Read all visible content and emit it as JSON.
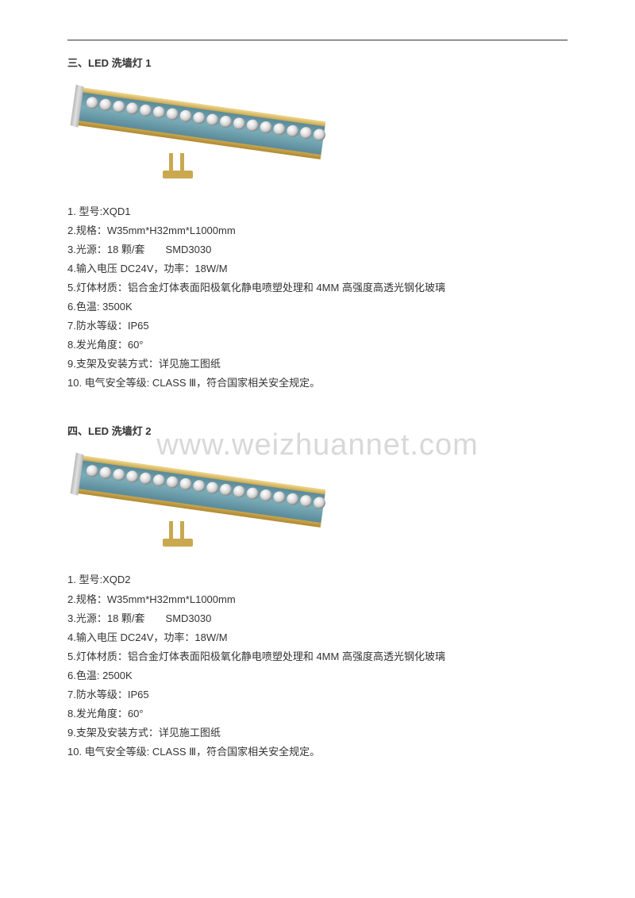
{
  "watermark": "www.weizhuannet.com",
  "section1": {
    "title": "三、LED 洗墙灯 1",
    "specs": [
      "1. 型号:XQD1",
      "2.规格：W35mm*H32mm*L1000mm",
      "3.光源：18 颗/套　　SMD3030",
      "4.输入电压 DC24V，功率：18W/M",
      "5.灯体材质：铝合金灯体表面阳极氧化静电喷塑处理和 4MM 高强度高透光钢化玻璃",
      "6.色温: 3500K",
      "7.防水等级：IP65",
      "8.发光角度：60°",
      "9.支架及安装方式：详见施工图纸",
      "10. 电气安全等级: CLASS Ⅲ，符合国家相关安全规定。"
    ]
  },
  "section2": {
    "title": "四、LED 洗墙灯 2",
    "specs": [
      "1. 型号:XQD2",
      "2.规格：W35mm*H32mm*L1000mm",
      "3.光源：18 颗/套　　SMD3030",
      "4.输入电压 DC24V，功率：18W/M",
      "5.灯体材质：铝合金灯体表面阳极氧化静电喷塑处理和 4MM 高强度高透光钢化玻璃",
      "6.色温: 2500K",
      "7.防水等级：IP65",
      "8.发光角度：60°",
      "9.支架及安装方式：详见施工图纸",
      "10. 电气安全等级: CLASS Ⅲ，符合国家相关安全规定。"
    ]
  },
  "image": {
    "led_count": 18
  }
}
